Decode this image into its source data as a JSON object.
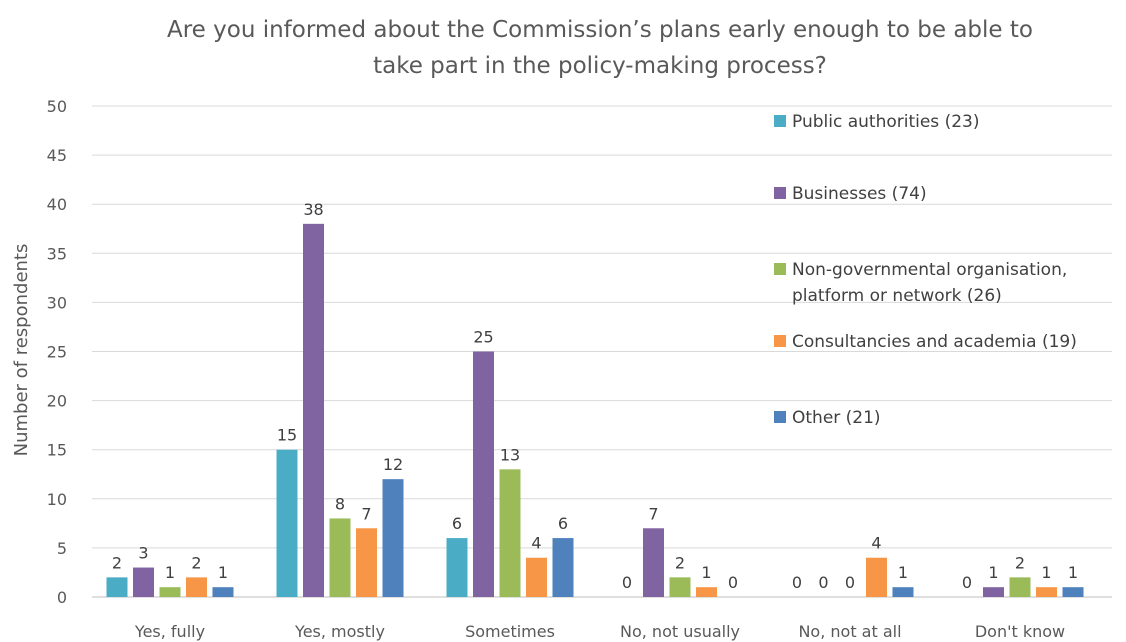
{
  "chart_data": {
    "type": "bar",
    "title_line1": "Are you informed about the Commission’s plans early enough to be able to",
    "title_line2": "take part in the policy-making process?",
    "ylabel": "Number of respondents",
    "xlabel": "",
    "ylim": [
      0,
      50
    ],
    "ytick_step": 5,
    "grid": true,
    "legend_position": "top-right",
    "categories": [
      "Yes, fully",
      "Yes, mostly",
      "Sometimes",
      "No, not usually",
      "No, not at all",
      "Don't know"
    ],
    "series": [
      {
        "name": "Public authorities (23)",
        "legend_lines": [
          "Public authorities  (23)"
        ],
        "color": "#4BACC6",
        "values": [
          2,
          15,
          6,
          0,
          0,
          0
        ]
      },
      {
        "name": "Businesses (74)",
        "legend_lines": [
          "Businesses  (74)"
        ],
        "color": "#8064A2",
        "values": [
          3,
          38,
          25,
          7,
          0,
          1
        ]
      },
      {
        "name": "Non-governmental organisation, platform or network (26)",
        "legend_lines": [
          "Non-governmental organisation,",
          "platform or network  (26)"
        ],
        "color": "#9BBB59",
        "values": [
          1,
          8,
          13,
          2,
          0,
          2
        ]
      },
      {
        "name": "Consultancies and academia (19)",
        "legend_lines": [
          "Consultancies and academia  (19)"
        ],
        "color": "#F79646",
        "values": [
          2,
          7,
          4,
          1,
          4,
          1
        ]
      },
      {
        "name": "Other (21)",
        "legend_lines": [
          "Other  (21)"
        ],
        "color": "#4F81BD",
        "values": [
          1,
          12,
          6,
          0,
          1,
          1
        ]
      }
    ]
  }
}
